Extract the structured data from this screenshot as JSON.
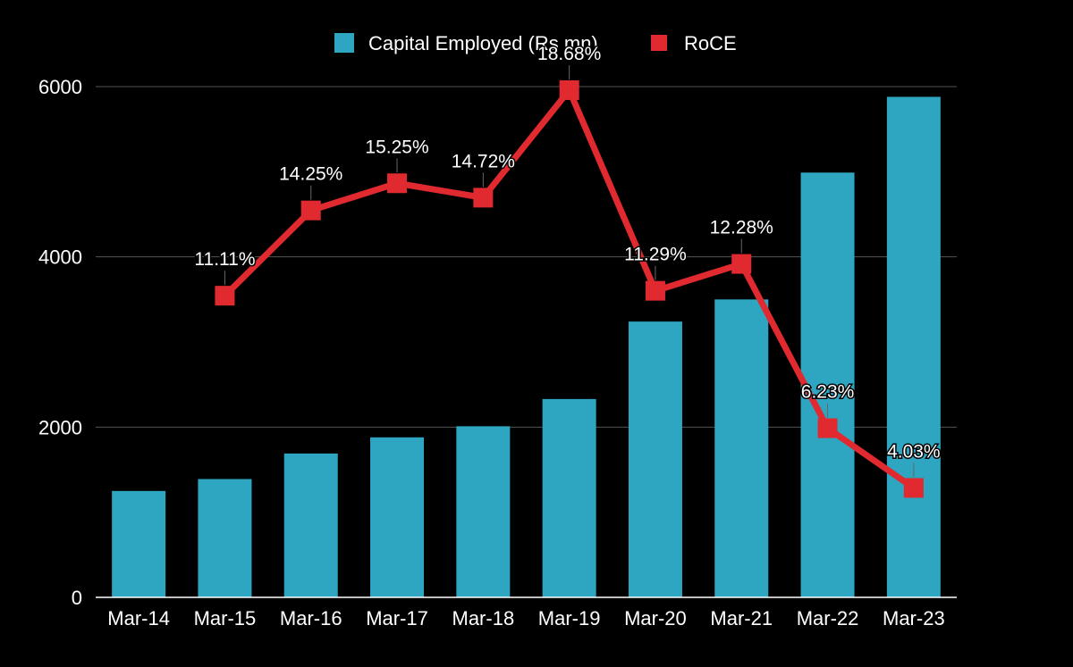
{
  "chart_data": {
    "type": "bar",
    "title": "",
    "xlabel": "",
    "ylabel": "",
    "categories": [
      "Mar-14",
      "Mar-15",
      "Mar-16",
      "Mar-17",
      "Mar-18",
      "Mar-19",
      "Mar-20",
      "Mar-21",
      "Mar-22",
      "Mar-23"
    ],
    "ylim": [
      0,
      6000
    ],
    "yticks": [
      "0",
      "2000",
      "4000",
      "6000"
    ],
    "grid": true,
    "legend_position": "top-center",
    "series": [
      {
        "name": "Capital Employed (Rs mn)",
        "type": "bar",
        "color": "#2ea6c2",
        "values": [
          1250,
          1390,
          1690,
          1880,
          2010,
          2330,
          3240,
          3500,
          4990,
          5880
        ]
      },
      {
        "name": "RoCE",
        "type": "line",
        "color": "#e02a2f",
        "marker": "square",
        "values": [
          null,
          11.11,
          14.25,
          15.25,
          14.72,
          18.68,
          11.29,
          12.28,
          6.23,
          4.03
        ],
        "labels": [
          null,
          "11.11%",
          "14.25%",
          "15.25%",
          "14.72%",
          "18.68%",
          "11.29%",
          "12.28%",
          "6.23%",
          "4.03%"
        ],
        "ylim": [
          0,
          22
        ]
      }
    ]
  }
}
